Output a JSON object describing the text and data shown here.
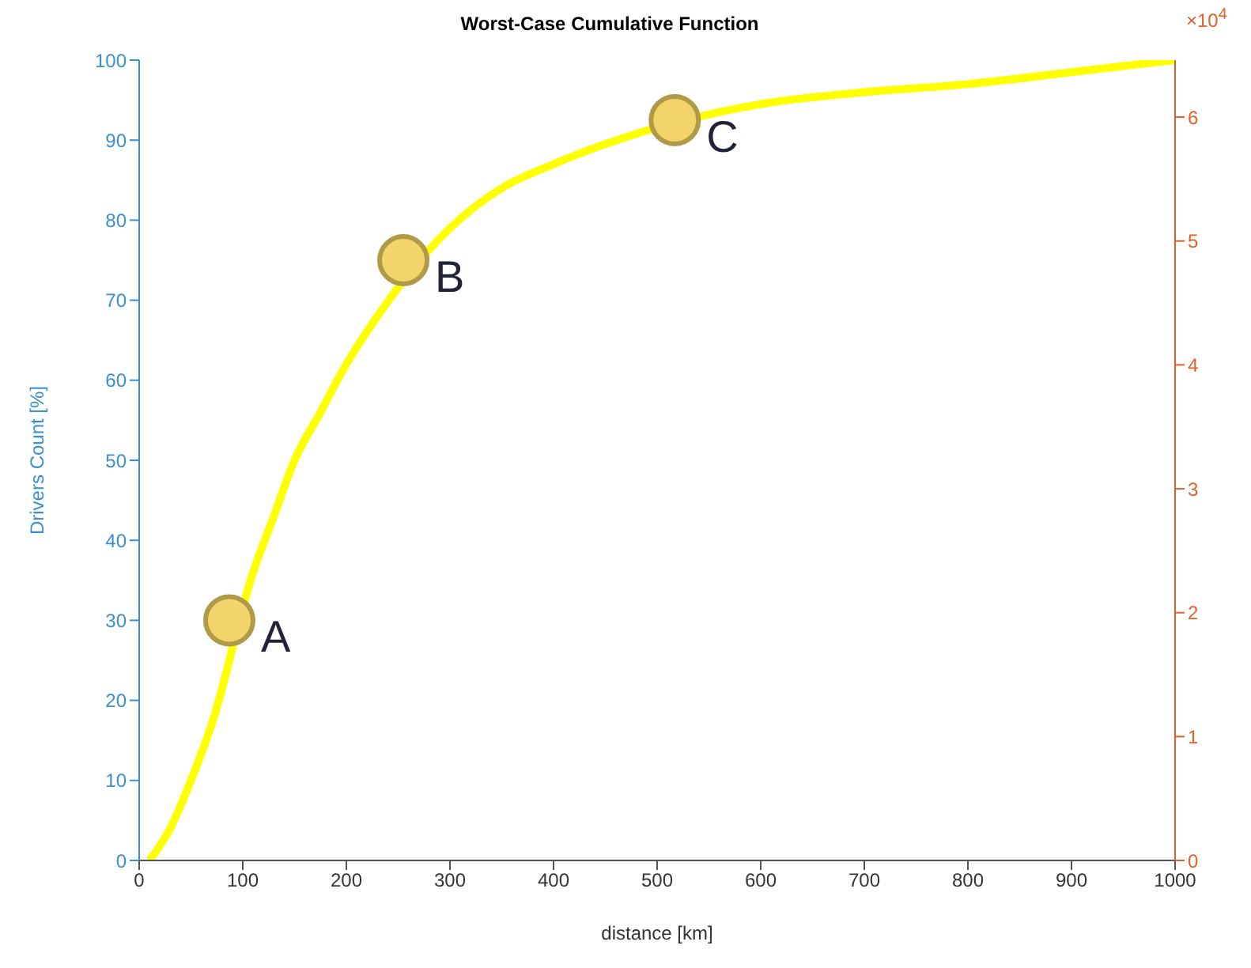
{
  "chart_data": {
    "type": "line",
    "title": "Worst-Case Cumulative Function",
    "xlabel": "distance [km]",
    "ylabel": "Drivers Count [%]",
    "xlim": [
      0,
      1000
    ],
    "xticks": [
      0,
      100,
      200,
      300,
      400,
      500,
      600,
      700,
      800,
      900,
      1000
    ],
    "ylim": [
      0,
      100
    ],
    "yticks": [
      0,
      10,
      20,
      30,
      40,
      50,
      60,
      70,
      80,
      90,
      100
    ],
    "y2lim": [
      0,
      6.46
    ],
    "y2ticks": [
      0,
      1,
      2,
      3,
      4,
      5,
      6
    ],
    "grid": false,
    "legend": false,
    "series": [
      {
        "color": "#ffff00",
        "x": [
          10,
          30,
          50,
          70,
          110,
          130,
          150,
          175,
          200,
          230,
          300,
          350,
          400,
          450,
          600,
          700,
          800,
          900,
          1000
        ],
        "values": [
          0,
          4,
          10,
          17,
          36,
          43,
          50,
          56,
          62,
          68,
          79,
          84,
          87,
          89.5,
          94.5,
          96,
          97,
          98.5,
          100
        ]
      },
      {
        "type": "scatter",
        "color": "#f2d46a",
        "marker": "circle",
        "x": [
          87,
          255,
          517
        ],
        "values": [
          30,
          75,
          92.5
        ]
      }
    ],
    "annotations": [
      {
        "text": "A",
        "x": 87,
        "y": 30
      },
      {
        "text": "B",
        "x": 255,
        "y": 75
      },
      {
        "text": "C",
        "x": 517,
        "y": 92.5
      },
      "×10$^{4}$"
    ]
  }
}
